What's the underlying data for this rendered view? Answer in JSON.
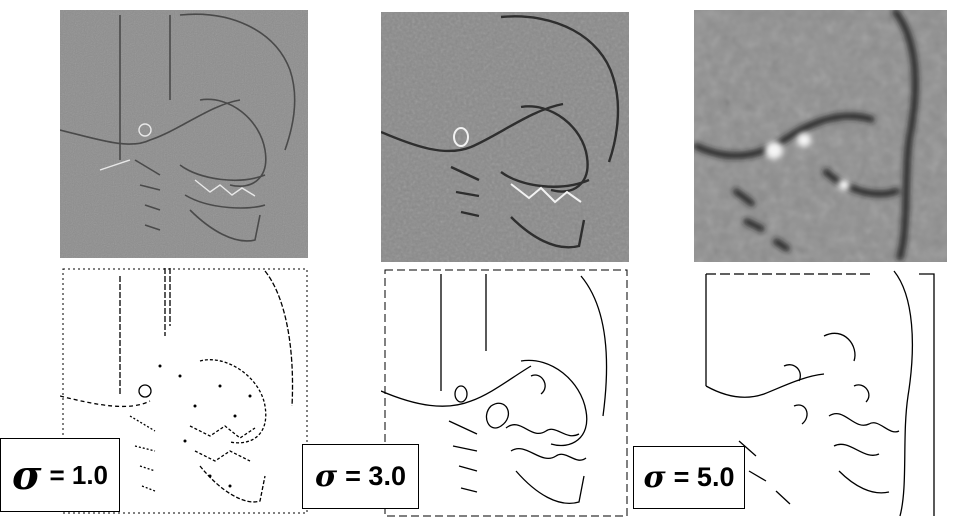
{
  "labels": [
    {
      "symbol": "σ",
      "value_text": "= 1.0"
    },
    {
      "symbol": "σ",
      "value_text": "= 3.0"
    },
    {
      "symbol": "σ",
      "value_text": "= 5.0"
    }
  ],
  "colors": {
    "filtered_background": "#8a8a8a",
    "edge_background": "#ffffff",
    "edge_stroke": "#000000"
  }
}
